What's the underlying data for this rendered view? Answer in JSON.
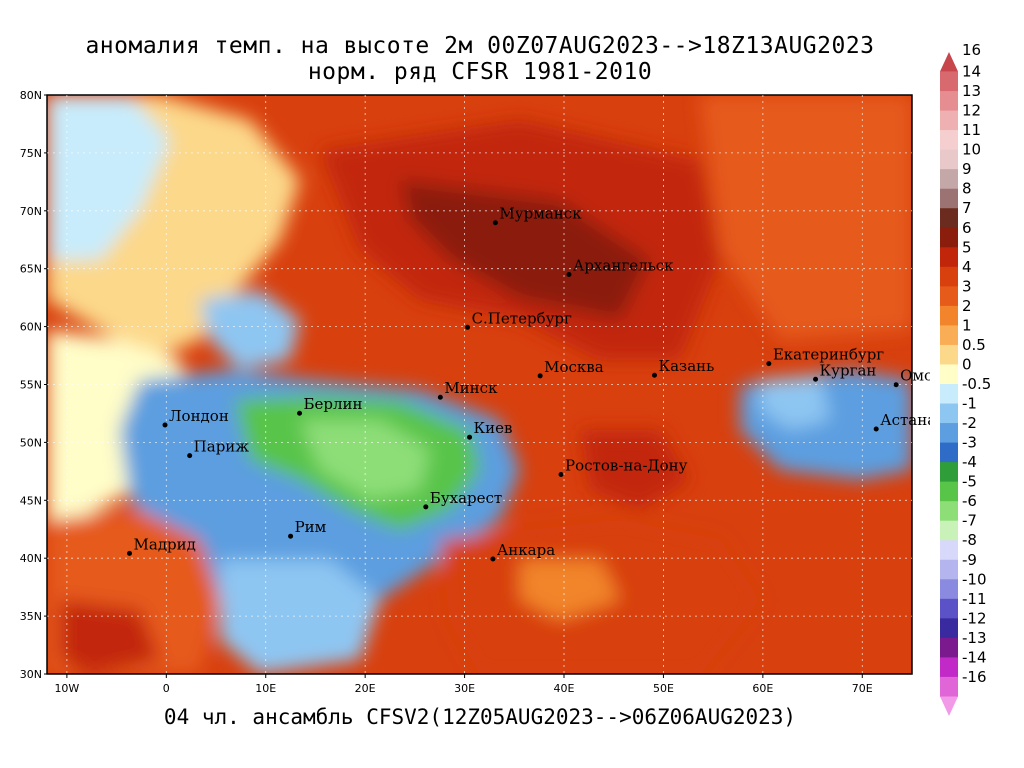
{
  "title_line1": "аномалия темп. на высоте 2м 00Z07AUG2023-->18Z13AUG2023",
  "title_line2": "норм. ряд CFSR 1981-2010",
  "footer": "04 чл. ансамбль CFSV2(12Z05AUG2023-->06Z06AUG2023)",
  "lat_labels": [
    "80N",
    "75N",
    "70N",
    "65N",
    "60N",
    "55N",
    "50N",
    "45N",
    "40N",
    "35N",
    "30N"
  ],
  "lon_labels": [
    "10W",
    "0",
    "10E",
    "20E",
    "30E",
    "40E",
    "50E",
    "60E",
    "70E"
  ],
  "cities": [
    {
      "name": "Мурманск",
      "lon": 33.1,
      "lat": 68.97
    },
    {
      "name": "Архангельск",
      "lon": 40.5,
      "lat": 64.5
    },
    {
      "name": "С.Петербург",
      "lon": 30.3,
      "lat": 59.94
    },
    {
      "name": "Москва",
      "lon": 37.6,
      "lat": 55.75
    },
    {
      "name": "Казань",
      "lon": 49.1,
      "lat": 55.8
    },
    {
      "name": "Екатеринбург",
      "lon": 60.6,
      "lat": 56.8
    },
    {
      "name": "Курган",
      "lon": 65.3,
      "lat": 55.45
    },
    {
      "name": "Омск",
      "lon": 73.4,
      "lat": 54.98
    },
    {
      "name": "Астана",
      "lon": 71.4,
      "lat": 51.16
    },
    {
      "name": "Минск",
      "lon": 27.56,
      "lat": 53.9
    },
    {
      "name": "Киев",
      "lon": 30.5,
      "lat": 50.45
    },
    {
      "name": "Берлин",
      "lon": 13.4,
      "lat": 52.52
    },
    {
      "name": "Лондон",
      "lon": -0.13,
      "lat": 51.5
    },
    {
      "name": "Париж",
      "lon": 2.35,
      "lat": 48.86
    },
    {
      "name": "Ростов-на-Дону",
      "lon": 39.7,
      "lat": 47.23
    },
    {
      "name": "Бухарест",
      "lon": 26.1,
      "lat": 44.43
    },
    {
      "name": "Рим",
      "lon": 12.5,
      "lat": 41.9
    },
    {
      "name": "Мадрид",
      "lon": -3.7,
      "lat": 40.42
    },
    {
      "name": "Анкара",
      "lon": 32.85,
      "lat": 39.93
    }
  ],
  "legend": {
    "labels": [
      "16",
      "14",
      "13",
      "12",
      "11",
      "10",
      "9",
      "8",
      "7",
      "6",
      "5",
      "4",
      "3",
      "2",
      "1",
      "0.5",
      "0",
      "-0.5",
      "-1",
      "-2",
      "-3",
      "-4",
      "-5",
      "-6",
      "-7",
      "-8",
      "-9",
      "-10",
      "-11",
      "-12",
      "-13",
      "-14",
      "-16"
    ],
    "colors": [
      "#c6464c",
      "#d86a6f",
      "#e58d90",
      "#efb0b1",
      "#f5cfcf",
      "#e8c8c8",
      "#c4a7a7",
      "#9c7373",
      "#6b2b1e",
      "#8b1d0c",
      "#c2260a",
      "#d8400e",
      "#e65a1a",
      "#f2852c",
      "#f9ae55",
      "#fcd88a",
      "#fffdc8",
      "#c8ecfc",
      "#8ec6f2",
      "#5c9ee0",
      "#2e6cc8",
      "#2f9e3a",
      "#58c448",
      "#8ede78",
      "#c8f2b8",
      "#d8d8fa",
      "#b4b4ee",
      "#8a8ae0",
      "#5a52c6",
      "#3a2aa0",
      "#7a1a8e",
      "#c22ac8",
      "#e066d8",
      "#f29ae8"
    ]
  },
  "field": {
    "description_colors": {
      "warm_strong": "#8b1d0c",
      "warm": "#c2260a",
      "warm_mid": "#d8400e",
      "warm_light": "#e65a1a",
      "orange": "#f2852c",
      "light_orange": "#f9ae55",
      "yellow": "#fcd88a",
      "neutral": "#fffdc8",
      "cool_light": "#c8ecfc",
      "cool": "#8ec6f2",
      "blue": "#5c9ee0",
      "green": "#58c448",
      "green_light": "#8ede78"
    }
  }
}
